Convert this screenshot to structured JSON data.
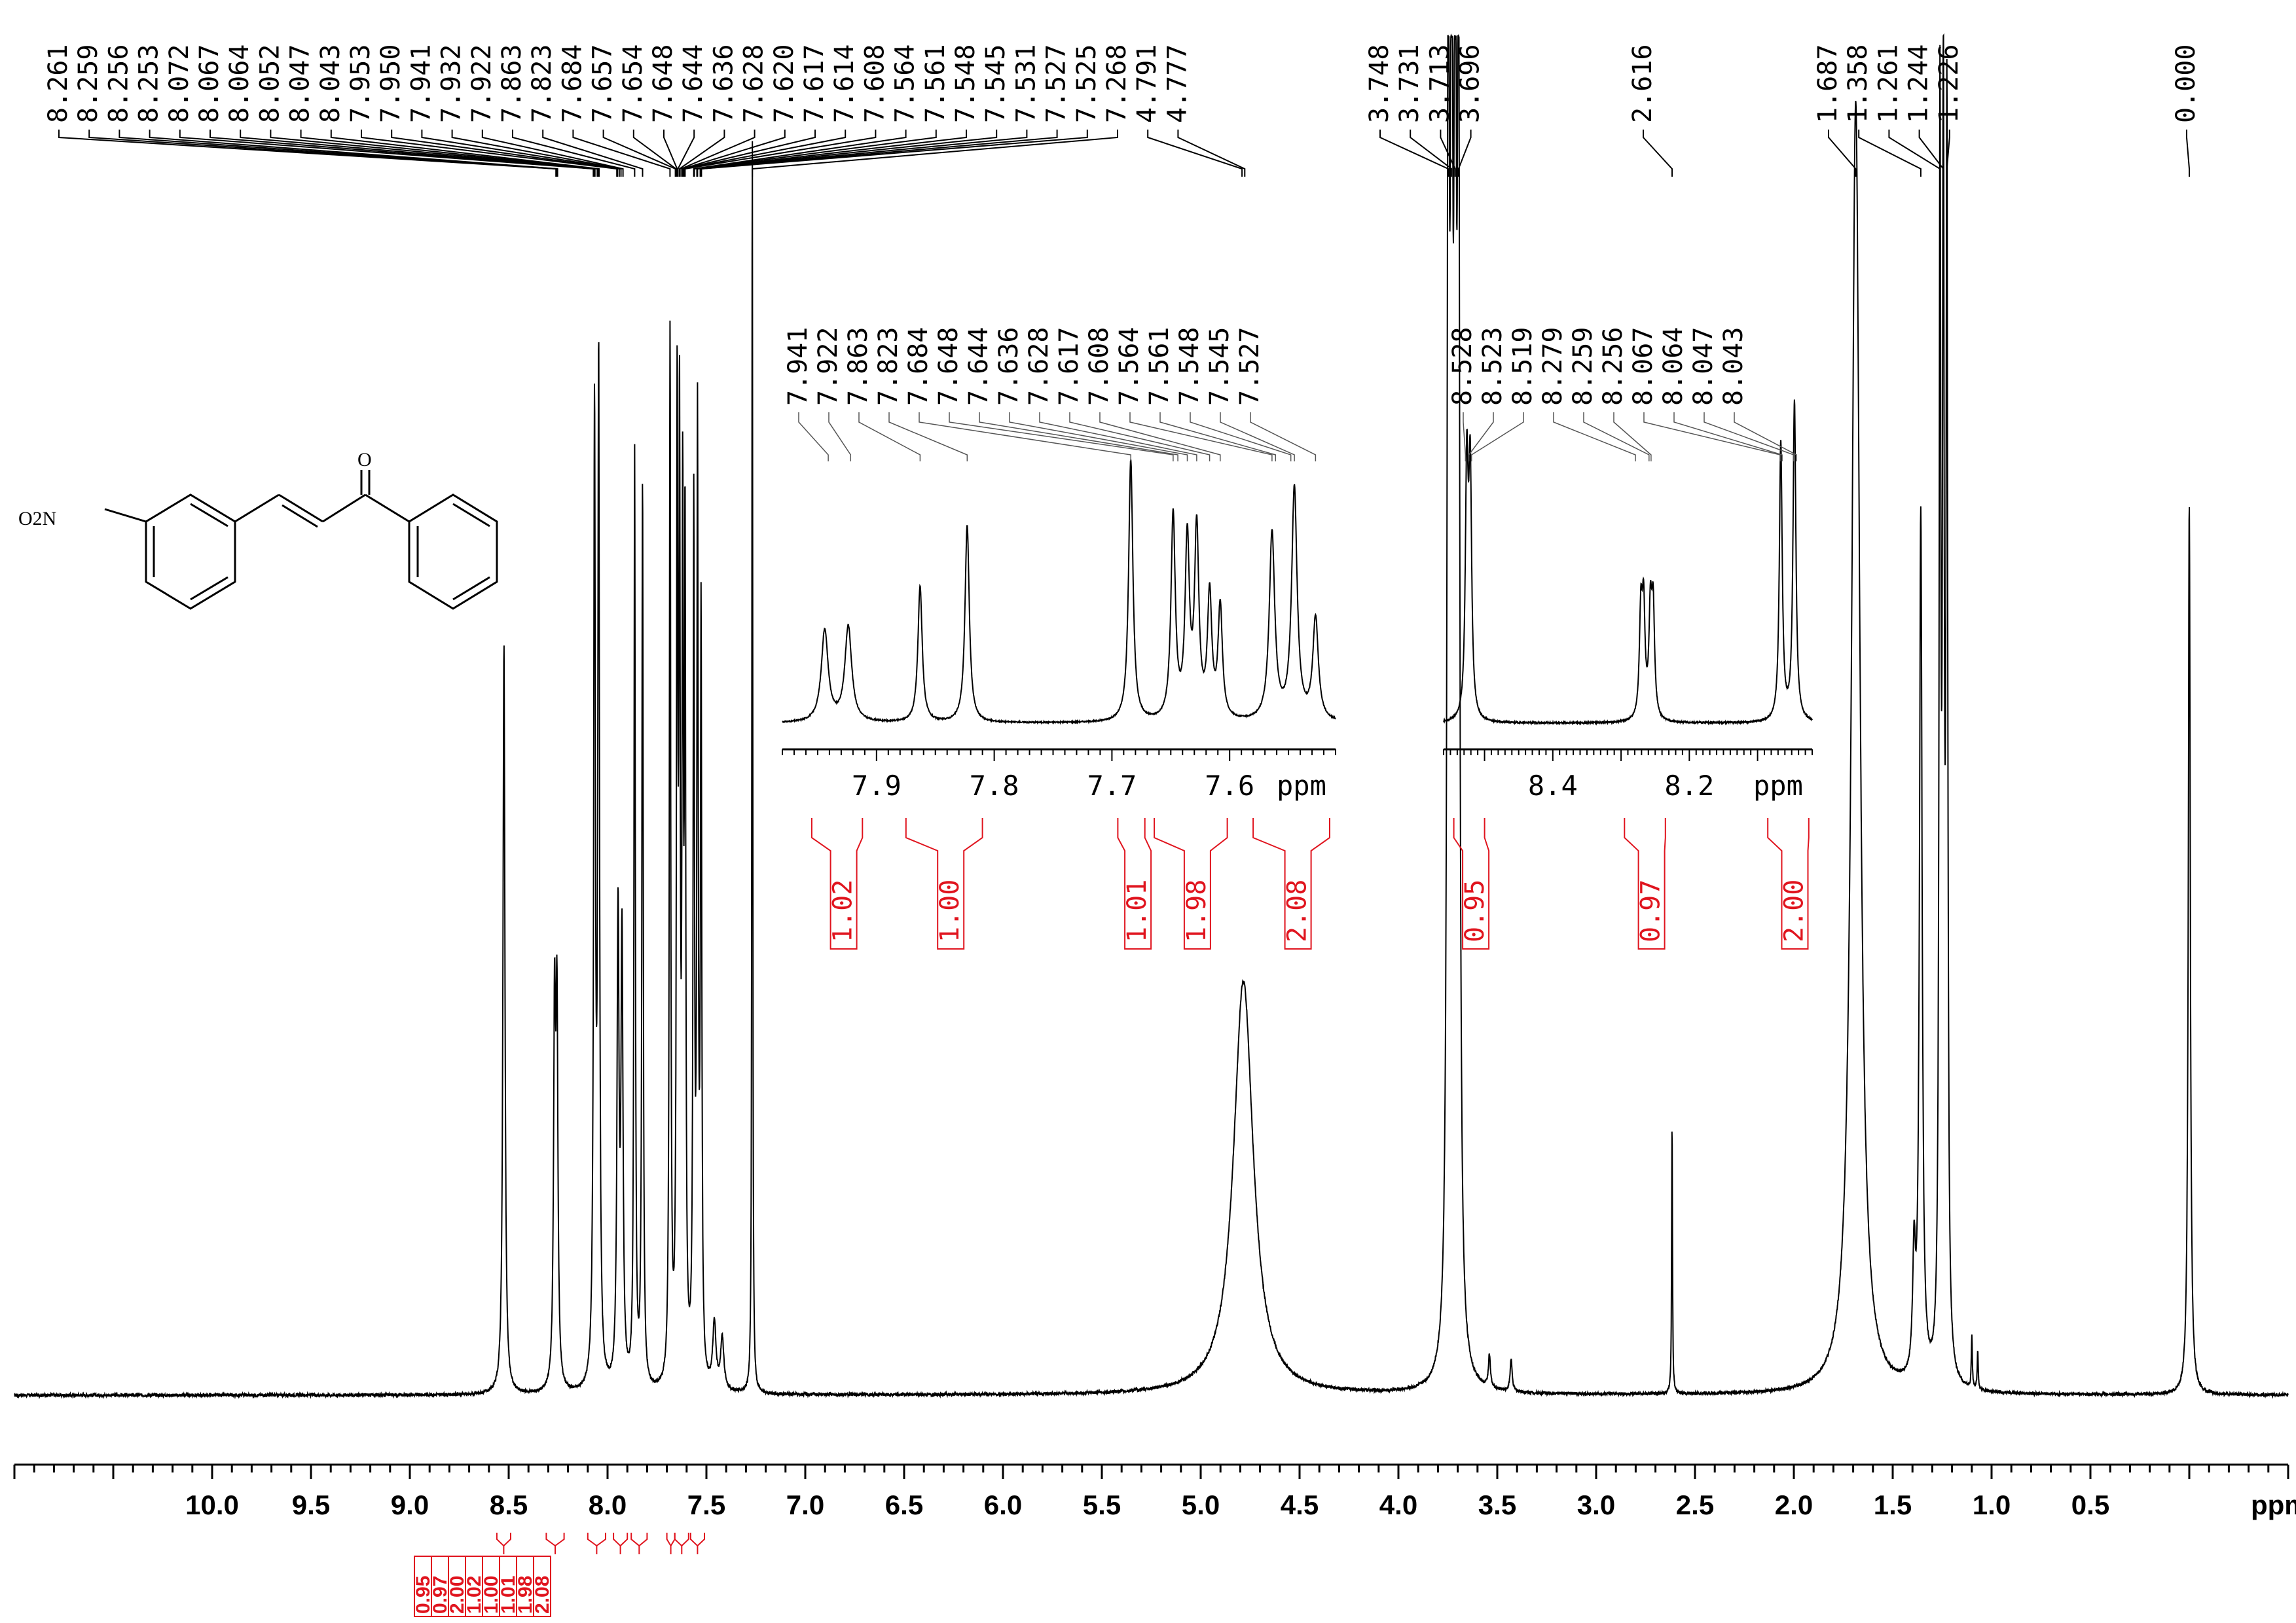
{
  "colors": {
    "trace": "#000000",
    "integral": "#e0141e",
    "background": "#ffffff"
  },
  "structure": {
    "substituent": "O2N",
    "carbonyl_o": "O"
  },
  "chart_data": [
    {
      "type": "line",
      "panel": "main",
      "x_axis": {
        "range": [
          11.0,
          -0.5
        ],
        "reversed": true,
        "ticks": [
          "10.0",
          "9.5",
          "9.0",
          "8.5",
          "8.0",
          "7.5",
          "7.0",
          "6.5",
          "6.0",
          "5.5",
          "5.0",
          "4.5",
          "4.0",
          "3.5",
          "3.0",
          "2.5",
          "2.0",
          "1.5",
          "1.0",
          "0.5"
        ],
        "unit": "ppm"
      },
      "peak_labels": [
        "8.261",
        "8.259",
        "8.256",
        "8.253",
        "8.072",
        "8.067",
        "8.064",
        "8.052",
        "8.047",
        "8.043",
        "7.953",
        "7.950",
        "7.941",
        "7.932",
        "7.922",
        "7.863",
        "7.823",
        "7.684",
        "7.657",
        "7.654",
        "7.648",
        "7.644",
        "7.636",
        "7.628",
        "7.620",
        "7.617",
        "7.614",
        "7.608",
        "7.564",
        "7.561",
        "7.548",
        "7.545",
        "7.531",
        "7.527",
        "7.525",
        "7.268",
        "4.791",
        "4.777",
        "3.748",
        "3.731",
        "3.713",
        "3.696",
        "2.616",
        "1.687",
        "1.358",
        "1.261",
        "1.244",
        "1.226",
        "0.000"
      ],
      "peaks": [
        {
          "ppm": 8.524,
          "height": 0.58,
          "width": 0.006
        },
        {
          "ppm": 8.268,
          "height": 0.28,
          "width": 0.006
        },
        {
          "ppm": 8.256,
          "height": 0.28,
          "width": 0.006
        },
        {
          "ppm": 8.066,
          "height": 0.74,
          "width": 0.005
        },
        {
          "ppm": 8.045,
          "height": 0.78,
          "width": 0.005
        },
        {
          "ppm": 7.947,
          "height": 0.36,
          "width": 0.006
        },
        {
          "ppm": 7.927,
          "height": 0.34,
          "width": 0.006
        },
        {
          "ppm": 7.863,
          "height": 0.72,
          "width": 0.004
        },
        {
          "ppm": 7.823,
          "height": 0.7,
          "width": 0.004
        },
        {
          "ppm": 7.684,
          "height": 0.81,
          "width": 0.004
        },
        {
          "ppm": 7.648,
          "height": 0.72,
          "width": 0.004
        },
        {
          "ppm": 7.636,
          "height": 0.68,
          "width": 0.004
        },
        {
          "ppm": 7.62,
          "height": 0.62,
          "width": 0.004
        },
        {
          "ppm": 7.608,
          "height": 0.62,
          "width": 0.004
        },
        {
          "ppm": 7.564,
          "height": 0.66,
          "width": 0.004
        },
        {
          "ppm": 7.545,
          "height": 0.72,
          "width": 0.004
        },
        {
          "ppm": 7.527,
          "height": 0.58,
          "width": 0.004
        },
        {
          "ppm": 7.46,
          "height": 0.05,
          "width": 0.01
        },
        {
          "ppm": 7.42,
          "height": 0.04,
          "width": 0.01
        },
        {
          "ppm": 7.268,
          "height": 0.99,
          "width": 0.0025
        },
        {
          "ppm": 4.784,
          "height": 0.32,
          "width": 0.06
        },
        {
          "ppm": 3.748,
          "height": 1.0,
          "width": 0.007
        },
        {
          "ppm": 3.731,
          "height": 1.0,
          "width": 0.007
        },
        {
          "ppm": 3.713,
          "height": 1.0,
          "width": 0.007
        },
        {
          "ppm": 3.696,
          "height": 1.0,
          "width": 0.007
        },
        {
          "ppm": 3.54,
          "height": 0.025,
          "width": 0.006
        },
        {
          "ppm": 3.43,
          "height": 0.025,
          "width": 0.006
        },
        {
          "ppm": 2.616,
          "height": 0.21,
          "width": 0.0025
        },
        {
          "ppm": 1.687,
          "height": 1.0,
          "width": 0.025
        },
        {
          "ppm": 1.392,
          "height": 0.09,
          "width": 0.008
        },
        {
          "ppm": 1.358,
          "height": 0.67,
          "width": 0.008
        },
        {
          "ppm": 1.261,
          "height": 0.94,
          "width": 0.005
        },
        {
          "ppm": 1.244,
          "height": 0.95,
          "width": 0.005
        },
        {
          "ppm": 1.226,
          "height": 0.94,
          "width": 0.005
        },
        {
          "ppm": 1.1,
          "height": 0.04,
          "width": 0.003
        },
        {
          "ppm": 1.07,
          "height": 0.03,
          "width": 0.003
        },
        {
          "ppm": 0.0,
          "height": 0.69,
          "width": 0.006
        }
      ],
      "integrals": [
        {
          "ppm_range": [
            8.56,
            8.49
          ],
          "value": "0.95"
        },
        {
          "ppm_range": [
            8.31,
            8.22
          ],
          "value": "0.97"
        },
        {
          "ppm_range": [
            8.1,
            8.01
          ],
          "value": "2.00"
        },
        {
          "ppm_range": [
            7.97,
            7.9
          ],
          "value": "1.02"
        },
        {
          "ppm_range": [
            7.88,
            7.8
          ],
          "value": "1.00"
        },
        {
          "ppm_range": [
            7.7,
            7.66
          ],
          "value": "1.01"
        },
        {
          "ppm_range": [
            7.66,
            7.59
          ],
          "value": "1.98"
        },
        {
          "ppm_range": [
            7.58,
            7.51
          ],
          "value": "2.08"
        }
      ]
    },
    {
      "type": "line",
      "panel": "inset-1",
      "x_axis": {
        "range": [
          7.98,
          7.51
        ],
        "reversed": true,
        "ticks": [
          "7.9",
          "7.8",
          "7.7",
          "7.6"
        ],
        "unit": "ppm"
      },
      "peak_labels": [
        "7.941",
        "7.922",
        "7.863",
        "7.823",
        "7.684",
        "7.648",
        "7.644",
        "7.636",
        "7.628",
        "7.617",
        "7.608",
        "7.564",
        "7.561",
        "7.548",
        "7.545",
        "7.527"
      ],
      "peaks": [
        {
          "ppm": 7.944,
          "height": 0.27,
          "width": 0.0035
        },
        {
          "ppm": 7.924,
          "height": 0.28,
          "width": 0.0035
        },
        {
          "ppm": 7.863,
          "height": 0.4,
          "width": 0.0022
        },
        {
          "ppm": 7.823,
          "height": 0.58,
          "width": 0.0022
        },
        {
          "ppm": 7.684,
          "height": 0.77,
          "width": 0.0022
        },
        {
          "ppm": 7.648,
          "height": 0.6,
          "width": 0.0022
        },
        {
          "ppm": 7.636,
          "height": 0.52,
          "width": 0.0022
        },
        {
          "ppm": 7.628,
          "height": 0.55,
          "width": 0.0022
        },
        {
          "ppm": 7.617,
          "height": 0.36,
          "width": 0.0022
        },
        {
          "ppm": 7.608,
          "height": 0.33,
          "width": 0.0022
        },
        {
          "ppm": 7.564,
          "height": 0.55,
          "width": 0.0028
        },
        {
          "ppm": 7.545,
          "height": 0.68,
          "width": 0.0028
        },
        {
          "ppm": 7.527,
          "height": 0.3,
          "width": 0.0028
        }
      ],
      "integrals": [
        {
          "ppm_range": [
            7.955,
            7.912
          ],
          "value": "1.02"
        },
        {
          "ppm_range": [
            7.875,
            7.81
          ],
          "value": "1.00"
        },
        {
          "ppm_range": [
            7.695,
            7.672
          ],
          "value": "1.01"
        },
        {
          "ppm_range": [
            7.664,
            7.602
          ],
          "value": "1.98"
        },
        {
          "ppm_range": [
            7.58,
            7.515
          ],
          "value": "2.08"
        }
      ]
    },
    {
      "type": "line",
      "panel": "inset-2",
      "x_axis": {
        "range": [
          8.56,
          8.02
        ],
        "reversed": true,
        "ticks": [
          "8.4",
          "8.2"
        ],
        "unit": "ppm"
      },
      "peak_labels": [
        "8.528",
        "8.523",
        "8.519",
        "8.279",
        "8.259",
        "8.256",
        "8.067",
        "8.064",
        "8.047",
        "8.043"
      ],
      "peaks": [
        {
          "ppm": 8.526,
          "height": 0.72,
          "width": 0.0025
        },
        {
          "ppm": 8.521,
          "height": 0.7,
          "width": 0.0025
        },
        {
          "ppm": 8.271,
          "height": 0.3,
          "width": 0.0025
        },
        {
          "ppm": 8.267,
          "height": 0.31,
          "width": 0.0025
        },
        {
          "ppm": 8.257,
          "height": 0.3,
          "width": 0.0025
        },
        {
          "ppm": 8.253,
          "height": 0.31,
          "width": 0.0025
        },
        {
          "ppm": 8.066,
          "height": 0.82,
          "width": 0.0025
        },
        {
          "ppm": 8.046,
          "height": 0.94,
          "width": 0.0025
        }
      ],
      "integrals": [
        {
          "ppm_range": [
            8.545,
            8.5
          ],
          "value": "0.95"
        },
        {
          "ppm_range": [
            8.295,
            8.235
          ],
          "value": "0.97"
        },
        {
          "ppm_range": [
            8.085,
            8.025
          ],
          "value": "2.00"
        }
      ]
    }
  ]
}
